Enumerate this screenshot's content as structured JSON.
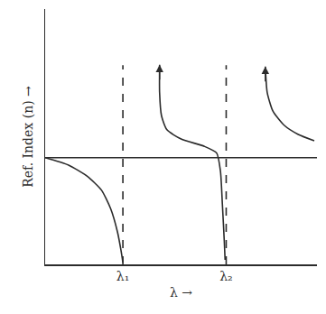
{
  "chart_data": {
    "type": "line",
    "xlabel": "λ →",
    "ylabel": "Ref. Index (n) →",
    "xlim": [
      0,
      10
    ],
    "ylim": [
      0,
      10
    ],
    "xticks": [
      {
        "value": 2.86,
        "label": "λ₁"
      },
      {
        "value": 6.66,
        "label": "λ₂"
      }
    ],
    "tick_labels": "x",
    "grid": false,
    "color": "#2b2b2b",
    "series": [
      {
        "x": [
          0,
          0.86,
          1.55,
          2.07,
          2.41,
          2.66,
          2.79,
          2.86
        ],
        "values": [
          4.18,
          3.89,
          3.45,
          2.91,
          2.18,
          1.27,
          0.55,
          0.07
        ],
        "line_style": "solid"
      },
      {
        "x": [
          4.21,
          4.21,
          4.28,
          4.48,
          5.0,
          5.86,
          6.31,
          6.45,
          6.52,
          6.59,
          6.62
        ],
        "values": [
          7.82,
          6.73,
          5.82,
          5.27,
          4.91,
          4.62,
          4.36,
          3.64,
          2.36,
          0.91,
          0.18
        ],
        "line_style": "solid",
        "marker": "arrow"
      },
      {
        "x": [
          8.1,
          8.17,
          8.38,
          8.79,
          9.31,
          9.9
        ],
        "values": [
          7.75,
          6.73,
          6.0,
          5.45,
          5.09,
          4.84
        ],
        "line_style": "solid",
        "marker": "arrow"
      },
      {
        "x": [
          0,
          10
        ],
        "values": [
          4.18,
          4.18
        ],
        "line_style": "solid"
      },
      {
        "x": [
          2.86,
          2.86
        ],
        "values": [
          0,
          7.8
        ],
        "line_style": "dashed"
      },
      {
        "x": [
          6.66,
          6.66
        ],
        "values": [
          0,
          7.8
        ],
        "line_style": "dashed"
      }
    ]
  }
}
